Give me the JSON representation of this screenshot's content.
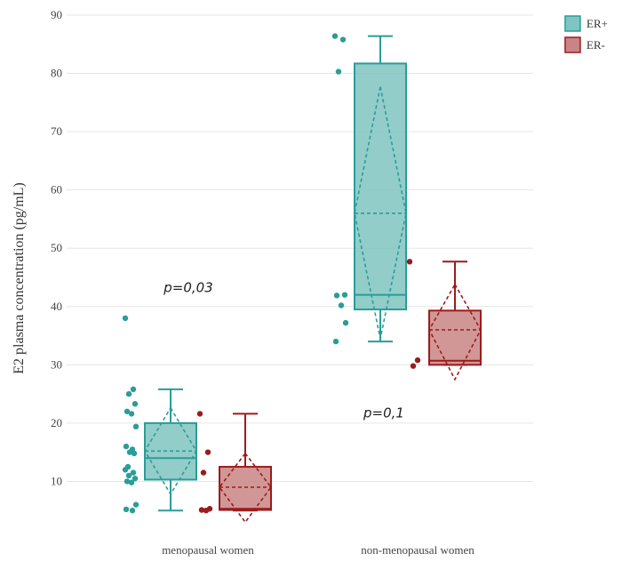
{
  "chart_data": {
    "type": "box",
    "ylabel": "E2 plasma concentration (pg/mL)",
    "xlabel": "",
    "ylim": [
      0,
      90
    ],
    "yticks": [
      10,
      20,
      30,
      40,
      50,
      60,
      70,
      80,
      90
    ],
    "categories": [
      "menopausal women",
      "non-menopausal women"
    ],
    "grid": true,
    "legend_position": "top-right",
    "series": [
      {
        "name": "ER+",
        "color": "#2a9d98",
        "fill": "#7fc4c0",
        "boxes": [
          {
            "category": "menopausal women",
            "q1": 10.3,
            "median": 14.0,
            "q3": 20.0,
            "mean": 15.2,
            "ci_low": 7.8,
            "ci_high": 22.6,
            "whisker_low": 5.0,
            "whisker_high": 25.8,
            "points": [
              38.0,
              25.8,
              25.0,
              23.3,
              22.0,
              21.6,
              19.4,
              16.0,
              15.5,
              15.0,
              14.8,
              12.5,
              12.0,
              11.5,
              11.0,
              10.5,
              10.0,
              9.8,
              6.0,
              5.2,
              5.0
            ]
          },
          {
            "category": "non-menopausal women",
            "q1": 39.5,
            "median": 42.0,
            "q3": 81.7,
            "mean": 56.0,
            "ci_low": 34.5,
            "ci_high": 77.7,
            "whisker_low": 34.0,
            "whisker_high": 86.4,
            "points": [
              86.4,
              85.8,
              80.3,
              42.0,
              41.9,
              40.2,
              37.2,
              34.0
            ]
          }
        ]
      },
      {
        "name": "ER-",
        "color": "#9b1c1c",
        "fill": "#c98585",
        "boxes": [
          {
            "category": "menopausal women",
            "q1": 5.1,
            "median": 5.3,
            "q3": 12.5,
            "mean": 9.0,
            "ci_low": 3.0,
            "ci_high": 14.8,
            "whisker_low": 5.0,
            "whisker_high": 21.6,
            "points": [
              21.6,
              15.0,
              11.5,
              5.3,
              5.1,
              5.0
            ]
          },
          {
            "category": "non-menopausal women",
            "q1": 30.0,
            "median": 30.7,
            "q3": 39.3,
            "mean": 36.0,
            "ci_low": 27.5,
            "ci_high": 43.8,
            "whisker_low": 30.0,
            "whisker_high": 47.7,
            "points": [
              47.7,
              30.8,
              29.8
            ]
          }
        ]
      }
    ],
    "annotations": [
      {
        "text": "p=0,03",
        "x": "menopausal women",
        "y": 42.5
      },
      {
        "text": "p=0,1",
        "x": "non-menopausal women",
        "y": 21.0
      }
    ]
  }
}
